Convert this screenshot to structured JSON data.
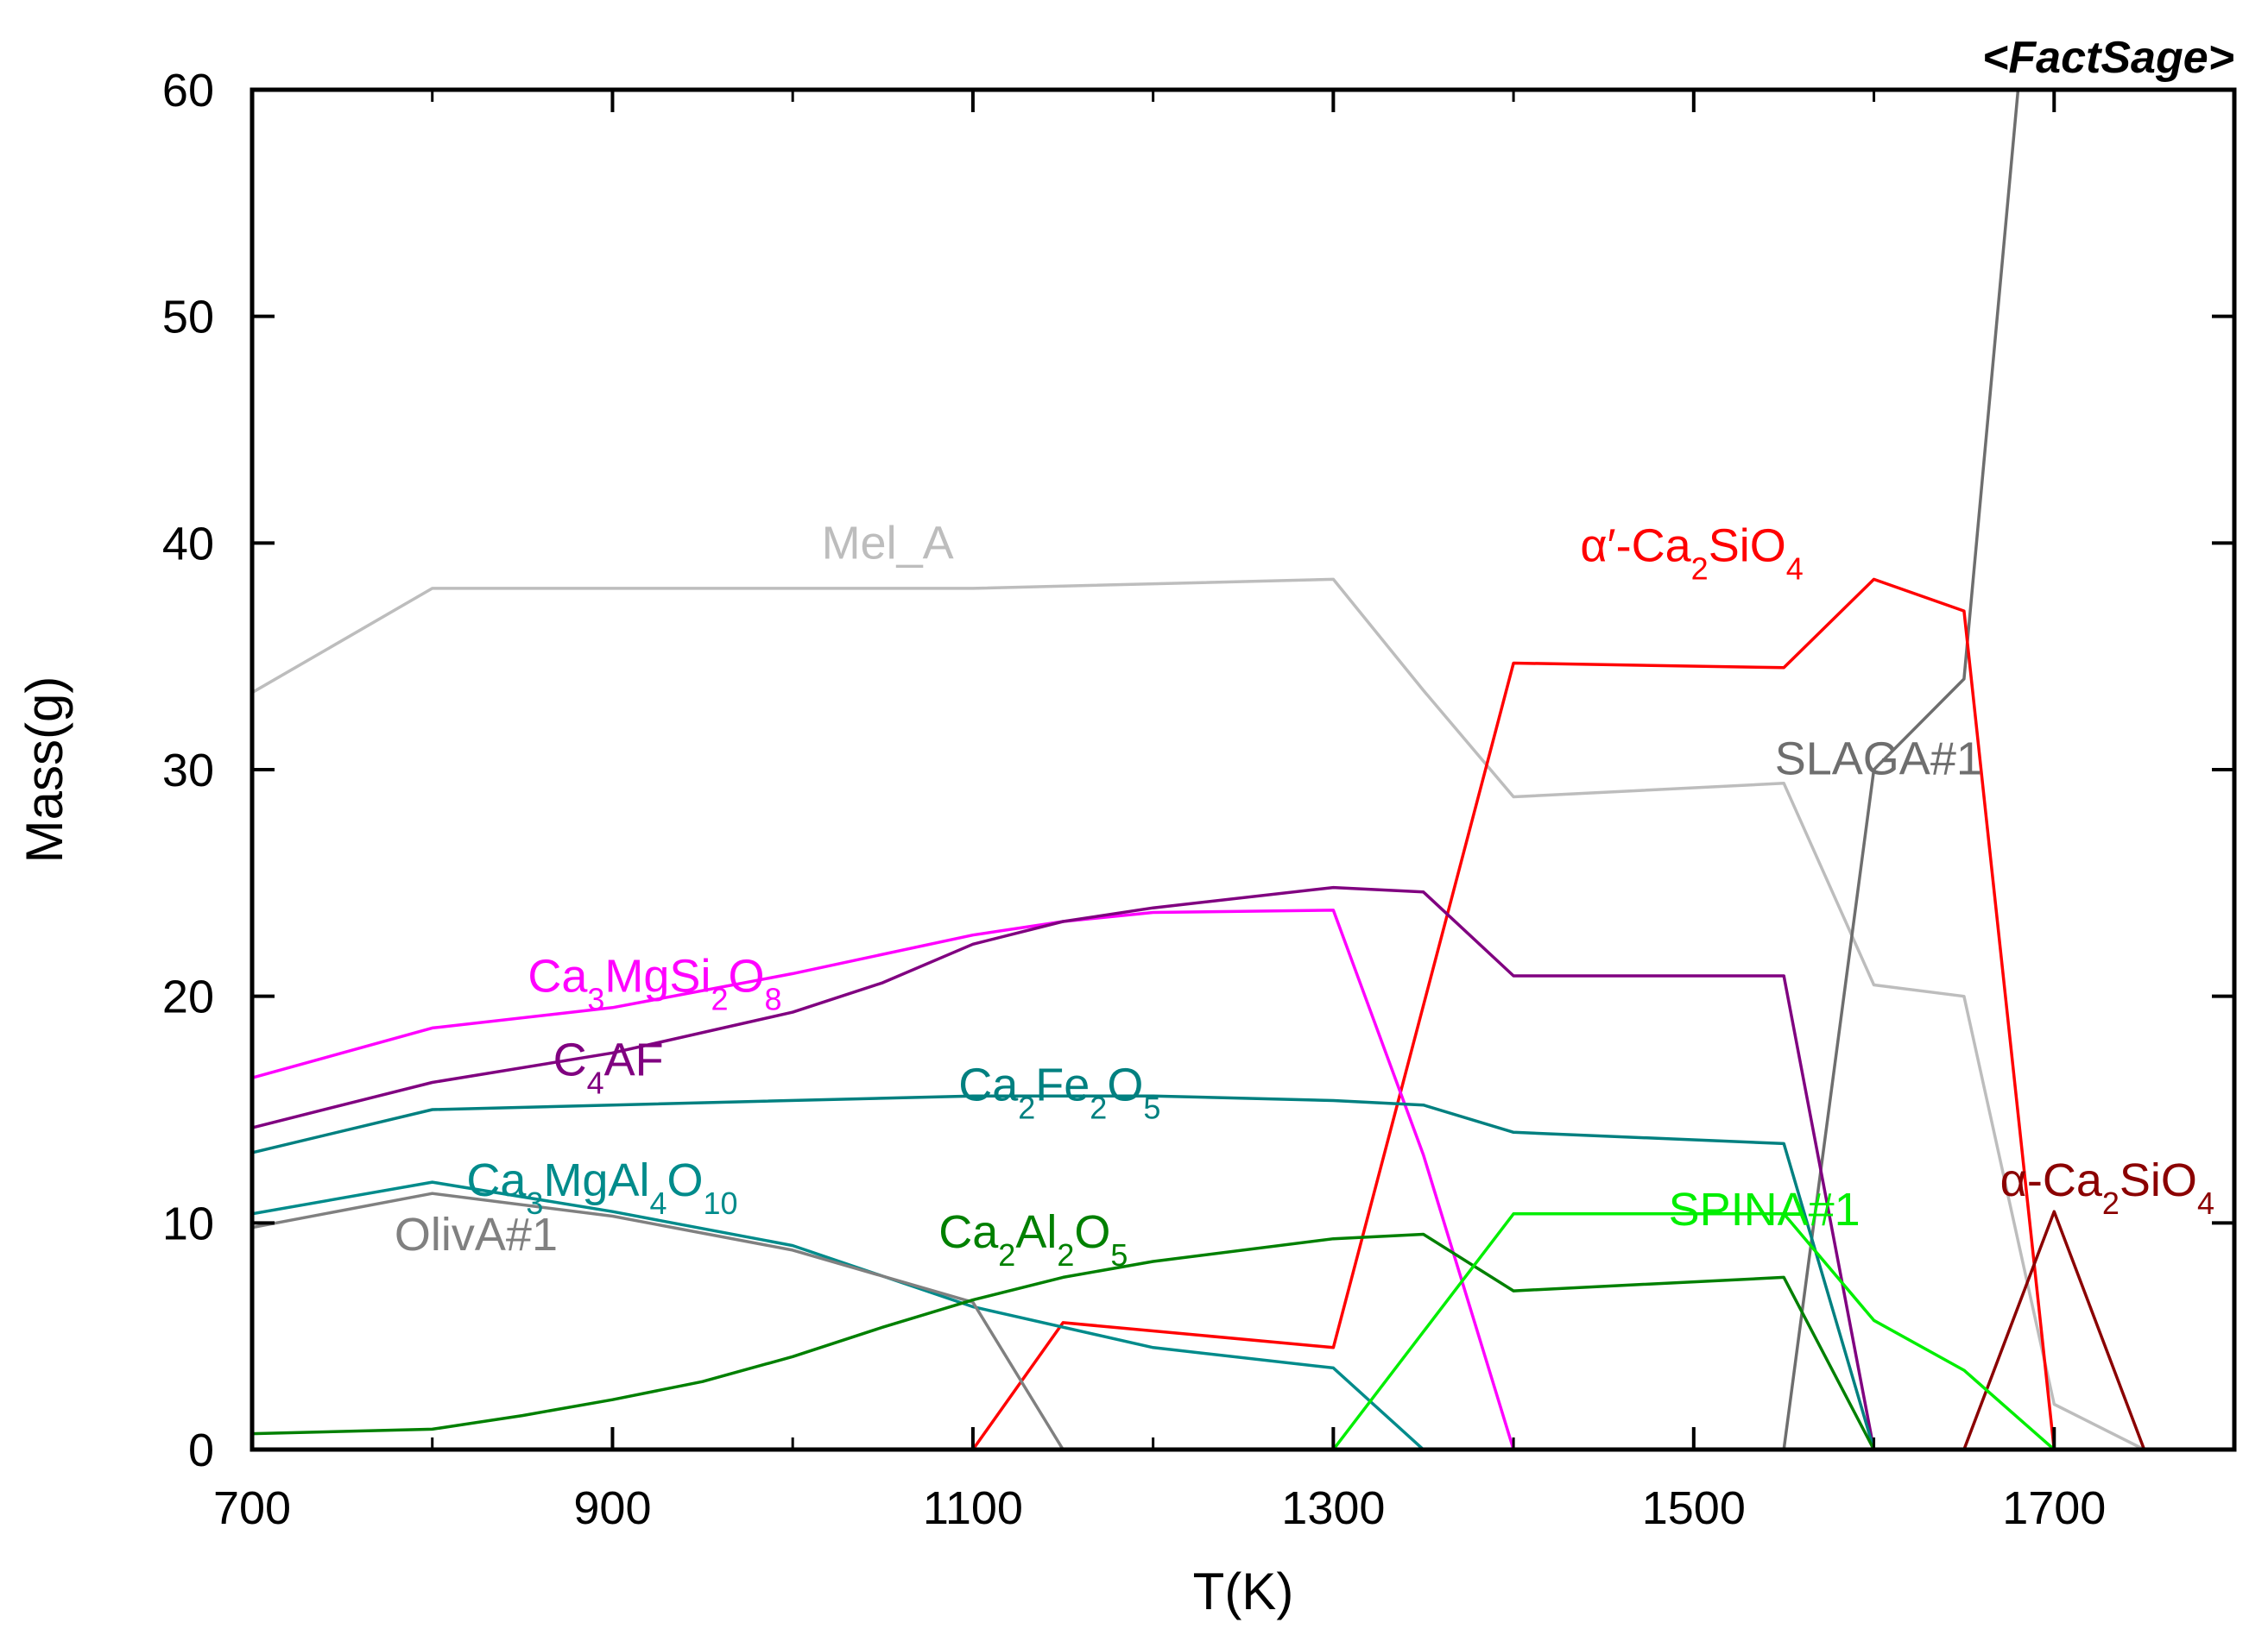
{
  "chart_data": {
    "type": "line",
    "title": "",
    "brand": "<FactSage>",
    "xlabel": "T(K)",
    "ylabel": "Mass(g)",
    "xlim": [
      700,
      1800
    ],
    "ylim": [
      0,
      60
    ],
    "xticks": [
      700,
      900,
      1100,
      1300,
      1500,
      1700
    ],
    "yticks": [
      0,
      10,
      20,
      30,
      40,
      50,
      60
    ],
    "grid": false,
    "series": [
      {
        "name": "Mel_A",
        "color": "#bdbdbd",
        "x": [
          700,
          800,
          1100,
          1300,
          1350,
          1400,
          1550,
          1600,
          1650,
          1700,
          1750
        ],
        "y": [
          33.4,
          38,
          38,
          38.4,
          33.5,
          28.8,
          29.4,
          20.5,
          20,
          2,
          0
        ]
      },
      {
        "name": "SLAGA#1",
        "color": "#6e6e6e",
        "x": [
          1550,
          1600,
          1650,
          1680
        ],
        "y": [
          0,
          30,
          34,
          60
        ]
      },
      {
        "name": "α′-Ca₂SiO₄",
        "color": "#ff0000",
        "x": [
          1100,
          1150,
          1300,
          1400,
          1550,
          1600,
          1650,
          1700
        ],
        "y": [
          0,
          5.6,
          4.5,
          34.7,
          34.5,
          38.4,
          37,
          0
        ]
      },
      {
        "name": "α-Ca₂SiO₄",
        "color": "#8b0000",
        "x": [
          1650,
          1700,
          1750
        ],
        "y": [
          0,
          10.5,
          0
        ]
      },
      {
        "name": "Ca₃MgSi₂O₈",
        "color": "#ff00ff",
        "x": [
          700,
          800,
          900,
          1000,
          1100,
          1150,
          1200,
          1300,
          1350,
          1400
        ],
        "y": [
          16.4,
          18.6,
          19.5,
          21,
          22.7,
          23.3,
          23.7,
          23.8,
          13,
          0
        ]
      },
      {
        "name": "C₄AF",
        "color": "#800080",
        "x": [
          700,
          800,
          900,
          1000,
          1050,
          1100,
          1150,
          1200,
          1300,
          1350,
          1400,
          1550,
          1600
        ],
        "y": [
          14.2,
          16.2,
          17.5,
          19.3,
          20.6,
          22.3,
          23.3,
          23.9,
          24.8,
          24.6,
          20.9,
          20.9,
          0
        ]
      },
      {
        "name": "Ca₂Fe₂O₅",
        "color": "#008080",
        "x": [
          700,
          800,
          900,
          1100,
          1200,
          1300,
          1350,
          1400,
          1550,
          1600
        ],
        "y": [
          13.1,
          15,
          15.2,
          15.6,
          15.6,
          15.4,
          15.2,
          14,
          13.5,
          0
        ]
      },
      {
        "name": "Ca₃MgAl₄O₁₀",
        "color": "#008b8b",
        "x": [
          700,
          800,
          900,
          1000,
          1100,
          1200,
          1300,
          1350
        ],
        "y": [
          10.4,
          11.8,
          10.5,
          9,
          6.3,
          4.5,
          3.6,
          0
        ]
      },
      {
        "name": "OlivA#1",
        "color": "#808080",
        "x": [
          700,
          800,
          900,
          1000,
          1100,
          1150
        ],
        "y": [
          9.8,
          11.3,
          10.3,
          8.8,
          6.5,
          0
        ]
      },
      {
        "name": "Ca₂Al₂O₅",
        "color": "#008000",
        "x": [
          700,
          800,
          850,
          900,
          950,
          1000,
          1050,
          1100,
          1150,
          1200,
          1300,
          1350,
          1400,
          1550,
          1600
        ],
        "y": [
          0.7,
          0.9,
          1.5,
          2.2,
          3,
          4.1,
          5.4,
          6.6,
          7.6,
          8.3,
          9.3,
          9.5,
          7,
          7.6,
          0
        ]
      },
      {
        "name": "SPINA#1",
        "color": "#00ee00",
        "x": [
          1300,
          1400,
          1550,
          1600,
          1650,
          1700
        ],
        "y": [
          0,
          10.4,
          10.4,
          5.7,
          3.5,
          0
        ]
      }
    ],
    "annotations": [
      {
        "series": "Mel_A",
        "x": 1016,
        "y": 39.3
      },
      {
        "series": "SLAGA#1",
        "x": 1545,
        "y": 29.8
      },
      {
        "series": "α′-Ca₂SiO₄",
        "x": 1437,
        "y": 39.2
      },
      {
        "series": "α-Ca₂SiO₄",
        "x": 1670,
        "y": 11.2
      },
      {
        "series": "Ca₃MgSi₂O₈",
        "x": 853,
        "y": 20.2
      },
      {
        "series": "C₄AF",
        "x": 867,
        "y": 16.5
      },
      {
        "series": "Ca₂Fe₂O₅",
        "x": 1092,
        "y": 15.4
      },
      {
        "series": "Ca₃MgAl₄O₁₀",
        "x": 819,
        "y": 11.2
      },
      {
        "series": "OlivA#1",
        "x": 779,
        "y": 8.8
      },
      {
        "series": "Ca₂Al₂O₅",
        "x": 1081,
        "y": 8.9
      },
      {
        "series": "SPINA#1",
        "x": 1486,
        "y": 9.9
      }
    ]
  }
}
